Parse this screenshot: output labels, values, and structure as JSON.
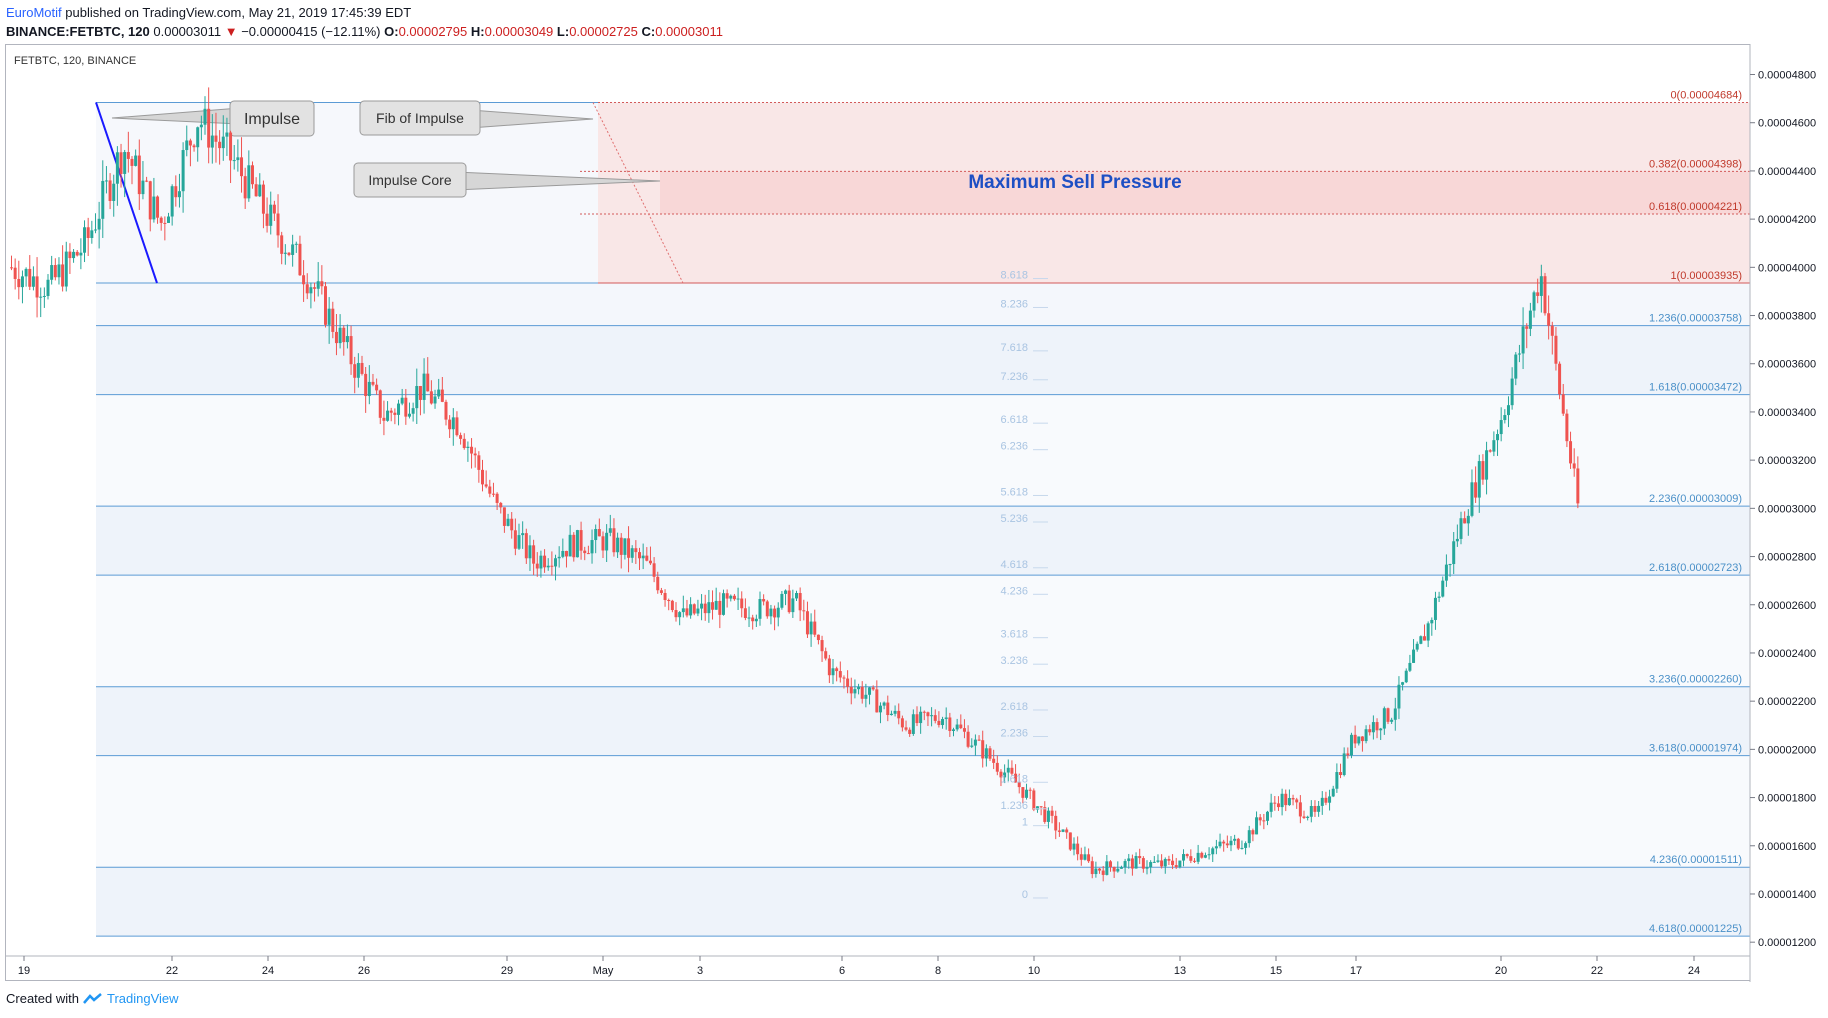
{
  "header": {
    "author": "EuroMotif",
    "published_text": "published on TradingView.com, May 21, 2019 17:45:39 EDT",
    "symbol": "BINANCE:FETBTC, 120",
    "last": "0.00003011",
    "change": "−0.00000415 (−12.11%)",
    "o_label": "O:",
    "o": "0.00002795",
    "h_label": "H:",
    "h": "0.00003049",
    "l_label": "L:",
    "l": "0.00002725",
    "c_label": "C:",
    "c": "0.00003011"
  },
  "legend": {
    "symbol": "FETBTC, 120, BINANCE"
  },
  "footer": {
    "created_with": "Created with",
    "brand": "TradingView"
  },
  "colors": {
    "up": "#26a69a",
    "down": "#ef5350",
    "fib_line": "#5b9bd5",
    "sell_zone": "#f8d7d7",
    "title_text": "#1d4fc4",
    "text": "#131722"
  },
  "chart_data": {
    "type": "candlestick",
    "title": "",
    "ylim": [
      1.18e-05,
      4.91e-05
    ],
    "y_ticks": [
      "0.00004800",
      "0.00004600",
      "0.00004400",
      "0.00004200",
      "0.00004000",
      "0.00003800",
      "0.00003600",
      "0.00003400",
      "0.00003200",
      "0.00003000",
      "0.00002800",
      "0.00002600",
      "0.00002400",
      "0.00002200",
      "0.00002000",
      "0.00001800",
      "0.00001600",
      "0.00001400",
      "0.00001200"
    ],
    "x_ticks": [
      "19",
      "22",
      "24",
      "26",
      "29",
      "May",
      "3",
      "6",
      "8",
      "10",
      "13",
      "15",
      "17",
      "20",
      "22",
      "24"
    ],
    "price_path": [
      [
        "Apr 19",
        4e-05
      ],
      [
        "Apr 20",
        3.92e-05
      ],
      [
        "Apr 20 PM",
        4.1e-05
      ],
      [
        "Apr 21",
        4.5e-05
      ],
      [
        "Apr 21 PM",
        4.18e-05
      ],
      [
        "Apr 22",
        4.62e-05
      ],
      [
        "Apr 22 PM",
        4.43e-05
      ],
      [
        "Apr 23",
        4.18e-05
      ],
      [
        "Apr 23 PM",
        3.95e-05
      ],
      [
        "Apr 24",
        3.65e-05
      ],
      [
        "Apr 24 PM",
        3.38e-05
      ],
      [
        "Apr 25",
        3.5e-05
      ],
      [
        "Apr 25 PM",
        3.35e-05
      ],
      [
        "Apr 26",
        3e-05
      ],
      [
        "Apr 26 PM",
        2.78e-05
      ],
      [
        "Apr 27",
        2.85e-05
      ],
      [
        "Apr 28",
        2.87e-05
      ],
      [
        "Apr 28 PM",
        2.77e-05
      ],
      [
        "Apr 29",
        2.55e-05
      ],
      [
        "Apr 30",
        2.6e-05
      ],
      [
        "May 1",
        2.58e-05
      ],
      [
        "May 2",
        2.62e-05
      ],
      [
        "May 3",
        2.32e-05
      ],
      [
        "May 4",
        2.22e-05
      ],
      [
        "May 5",
        2.1e-05
      ],
      [
        "May 6",
        2.14e-05
      ],
      [
        "May 7",
        2e-05
      ],
      [
        "May 8",
        1.85e-05
      ],
      [
        "May 9",
        1.68e-05
      ],
      [
        "May 10",
        1.5e-05
      ],
      [
        "May 11",
        1.53e-05
      ],
      [
        "May 12",
        1.52e-05
      ],
      [
        "May 13",
        1.58e-05
      ],
      [
        "May 14",
        1.62e-05
      ],
      [
        "May 15",
        1.8e-05
      ],
      [
        "May 16",
        1.72e-05
      ],
      [
        "May 17",
        2.05e-05
      ],
      [
        "May 18",
        2.15e-05
      ],
      [
        "May 19",
        2.52e-05
      ],
      [
        "May 20",
        3e-05
      ],
      [
        "May 20 PM",
        3.4e-05
      ],
      [
        "May 21",
        3.98e-05
      ],
      [
        "May 21 PM",
        3.01e-05
      ]
    ],
    "fib_right": [
      {
        "label": "0(0.00004684)",
        "value": 4.684e-05
      },
      {
        "label": "0.382(0.00004398)",
        "value": 4.398e-05
      },
      {
        "label": "0.618(0.00004221)",
        "value": 4.221e-05
      },
      {
        "label": "1(0.00003935)",
        "value": 3.935e-05
      },
      {
        "label": "1.236(0.00003758)",
        "value": 3.758e-05
      },
      {
        "label": "1.618(0.00003472)",
        "value": 3.472e-05
      },
      {
        "label": "2.236(0.00003009)",
        "value": 3.009e-05
      },
      {
        "label": "2.618(0.00002723)",
        "value": 2.723e-05
      },
      {
        "label": "3.236(0.00002260)",
        "value": 2.26e-05
      },
      {
        "label": "3.618(0.00001974)",
        "value": 1.974e-05
      },
      {
        "label": "4.236(0.00001511)",
        "value": 1.511e-05
      },
      {
        "label": "4.618(0.00001225)",
        "value": 1.225e-05
      }
    ],
    "fib_center": [
      {
        "label": "8.618",
        "value": 3.97e-05
      },
      {
        "label": "8.236",
        "value": 3.85e-05
      },
      {
        "label": "7.618",
        "value": 3.67e-05
      },
      {
        "label": "7.236",
        "value": 3.55e-05
      },
      {
        "label": "6.618",
        "value": 3.37e-05
      },
      {
        "label": "6.236",
        "value": 3.26e-05
      },
      {
        "label": "5.618",
        "value": 3.07e-05
      },
      {
        "label": "5.236",
        "value": 2.96e-05
      },
      {
        "label": "4.618",
        "value": 2.77e-05
      },
      {
        "label": "4.236",
        "value": 2.66e-05
      },
      {
        "label": "3.618",
        "value": 2.48e-05
      },
      {
        "label": "3.236",
        "value": 2.37e-05
      },
      {
        "label": "2.618",
        "value": 2.18e-05
      },
      {
        "label": "2.236",
        "value": 2.07e-05
      },
      {
        "label": "1.618",
        "value": 1.88e-05
      },
      {
        "label": "1.236",
        "value": 1.77e-05
      },
      {
        "label": "1",
        "value": 1.7e-05
      },
      {
        "label": "0",
        "value": 1.4e-05
      }
    ],
    "sell_zone": {
      "top": 4.398e-05,
      "bottom": 4.221e-05
    },
    "annotations": {
      "impulse": "Impulse",
      "fib_of_impulse": "Fib of Impulse",
      "impulse_core": "Impulse Core",
      "max_sell": "Maximum Sell Pressure"
    }
  }
}
